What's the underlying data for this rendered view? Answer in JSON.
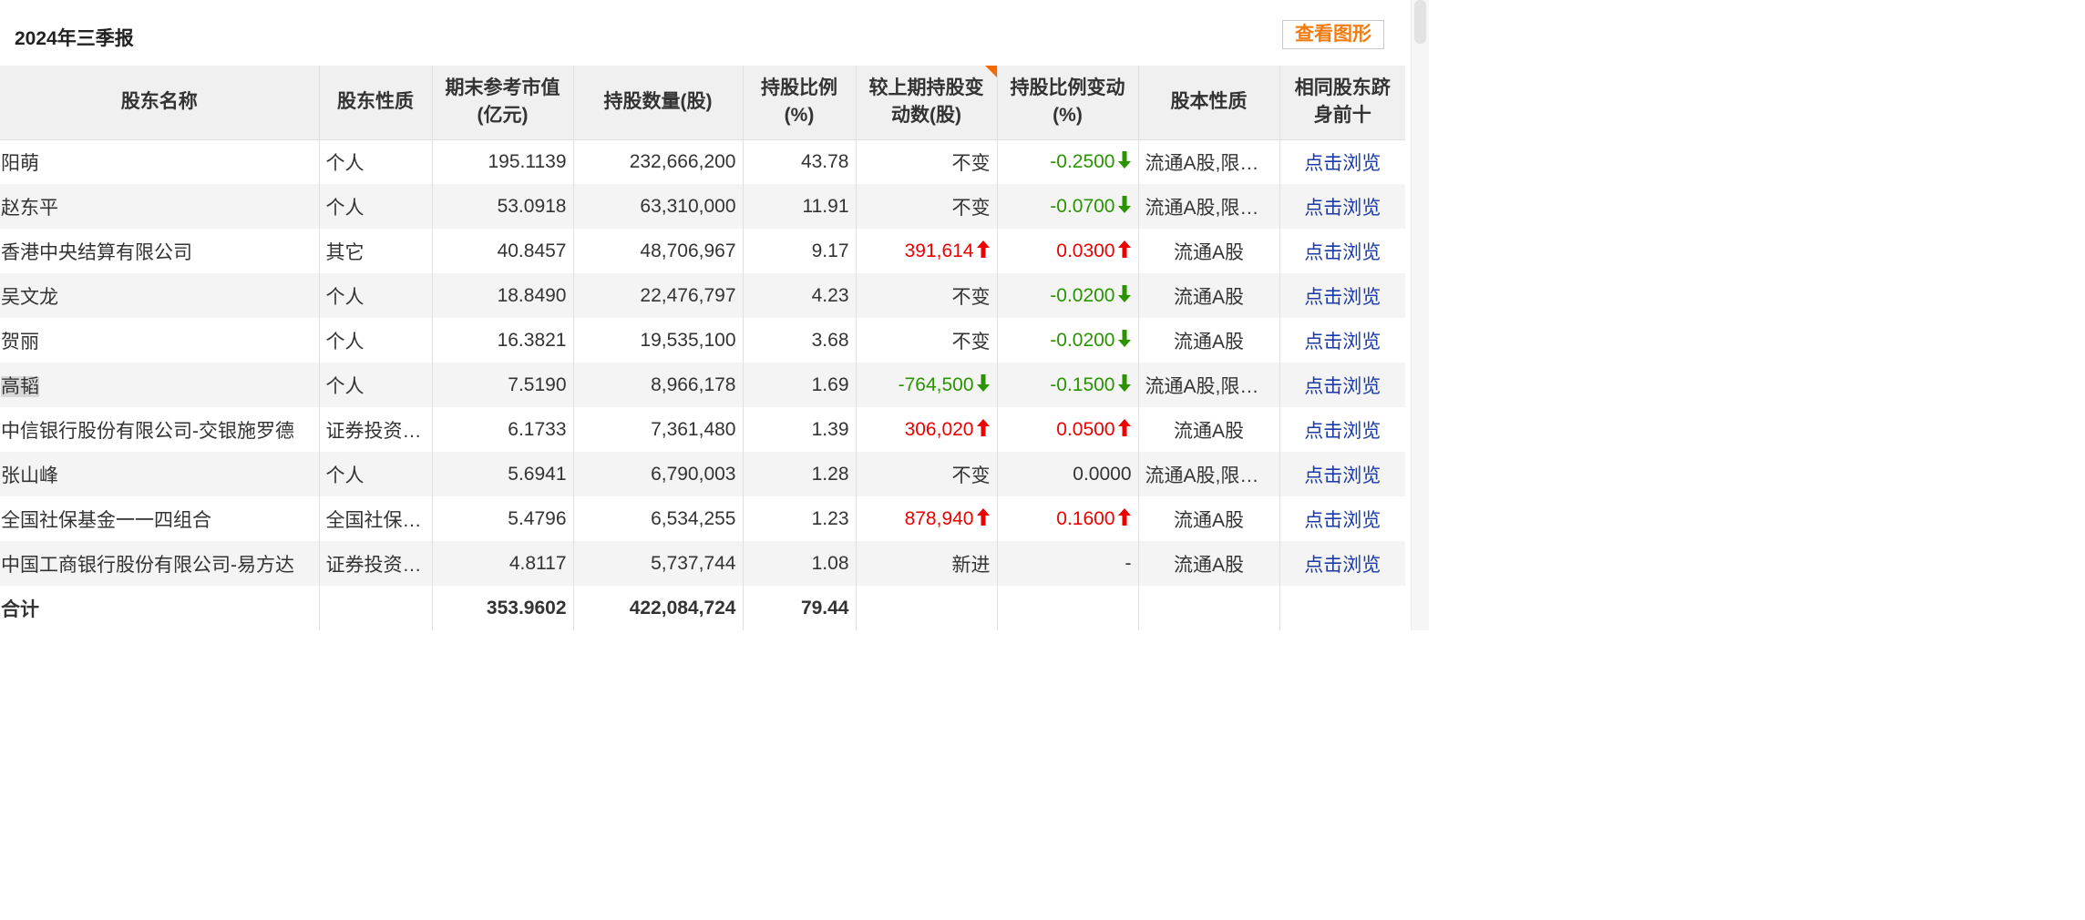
{
  "header": {
    "title": "2024年三季报",
    "view_button": "查看图形"
  },
  "colors": {
    "up": "#ee0000",
    "down": "#2a9400",
    "link": "#1a3aa8",
    "accent": "#f07d12"
  },
  "table": {
    "columns": [
      "股东名称",
      "股东性质",
      "期末参考市值(亿元)",
      "持股数量(股)",
      "持股比例(%)",
      "较上期持股变动数(股)",
      "持股比例变动(%)",
      "股本性质",
      "相同股东跻身前十"
    ],
    "rows": [
      {
        "name": "阳萌",
        "type": "个人",
        "value": "195.1139",
        "shares": "232,666,200",
        "ratio": "43.78",
        "change": "不变",
        "change_dir": "none",
        "ratio_change": "-0.2500",
        "ratio_dir": "down",
        "share_type": "流通A股,限售流通A股",
        "link": "点击浏览"
      },
      {
        "name": "赵东平",
        "type": "个人",
        "value": "53.0918",
        "shares": "63,310,000",
        "ratio": "11.91",
        "change": "不变",
        "change_dir": "none",
        "ratio_change": "-0.0700",
        "ratio_dir": "down",
        "share_type": "流通A股,限售流通A股",
        "link": "点击浏览"
      },
      {
        "name": "香港中央结算有限公司",
        "type": "其它",
        "value": "40.8457",
        "shares": "48,706,967",
        "ratio": "9.17",
        "change": "391,614",
        "change_dir": "up",
        "ratio_change": "0.0300",
        "ratio_dir": "up",
        "share_type": "流通A股",
        "link": "点击浏览"
      },
      {
        "name": "吴文龙",
        "type": "个人",
        "value": "18.8490",
        "shares": "22,476,797",
        "ratio": "4.23",
        "change": "不变",
        "change_dir": "none",
        "ratio_change": "-0.0200",
        "ratio_dir": "down",
        "share_type": "流通A股",
        "link": "点击浏览"
      },
      {
        "name": "贺丽",
        "type": "个人",
        "value": "16.3821",
        "shares": "19,535,100",
        "ratio": "3.68",
        "change": "不变",
        "change_dir": "none",
        "ratio_change": "-0.0200",
        "ratio_dir": "down",
        "share_type": "流通A股",
        "link": "点击浏览"
      },
      {
        "name": "高韬",
        "type": "个人",
        "value": "7.5190",
        "shares": "8,966,178",
        "ratio": "1.69",
        "change": "-764,500",
        "change_dir": "down",
        "ratio_change": "-0.1500",
        "ratio_dir": "down",
        "share_type": "流通A股,限售流通A股",
        "link": "点击浏览",
        "highlight": true
      },
      {
        "name": "中信银行股份有限公司-交银施罗德",
        "type": "证券投资基金",
        "value": "6.1733",
        "shares": "7,361,480",
        "ratio": "1.39",
        "change": "306,020",
        "change_dir": "up",
        "ratio_change": "0.0500",
        "ratio_dir": "up",
        "share_type": "流通A股",
        "link": "点击浏览"
      },
      {
        "name": "张山峰",
        "type": "个人",
        "value": "5.6941",
        "shares": "6,790,003",
        "ratio": "1.28",
        "change": "不变",
        "change_dir": "none",
        "ratio_change": "0.0000",
        "ratio_dir": "none",
        "share_type": "流通A股,限售流通A股",
        "link": "点击浏览"
      },
      {
        "name": "全国社保基金一一四组合",
        "type": "全国社保基金",
        "value": "5.4796",
        "shares": "6,534,255",
        "ratio": "1.23",
        "change": "878,940",
        "change_dir": "up",
        "ratio_change": "0.1600",
        "ratio_dir": "up",
        "share_type": "流通A股",
        "link": "点击浏览"
      },
      {
        "name": "中国工商银行股份有限公司-易方达",
        "type": "证券投资基金",
        "value": "4.8117",
        "shares": "5,737,744",
        "ratio": "1.08",
        "change": "新进",
        "change_dir": "none",
        "ratio_change": "-",
        "ratio_dir": "none",
        "share_type": "流通A股",
        "link": "点击浏览"
      }
    ],
    "total": {
      "label": "合计",
      "value": "353.9602",
      "shares": "422,084,724",
      "ratio": "79.44"
    }
  }
}
